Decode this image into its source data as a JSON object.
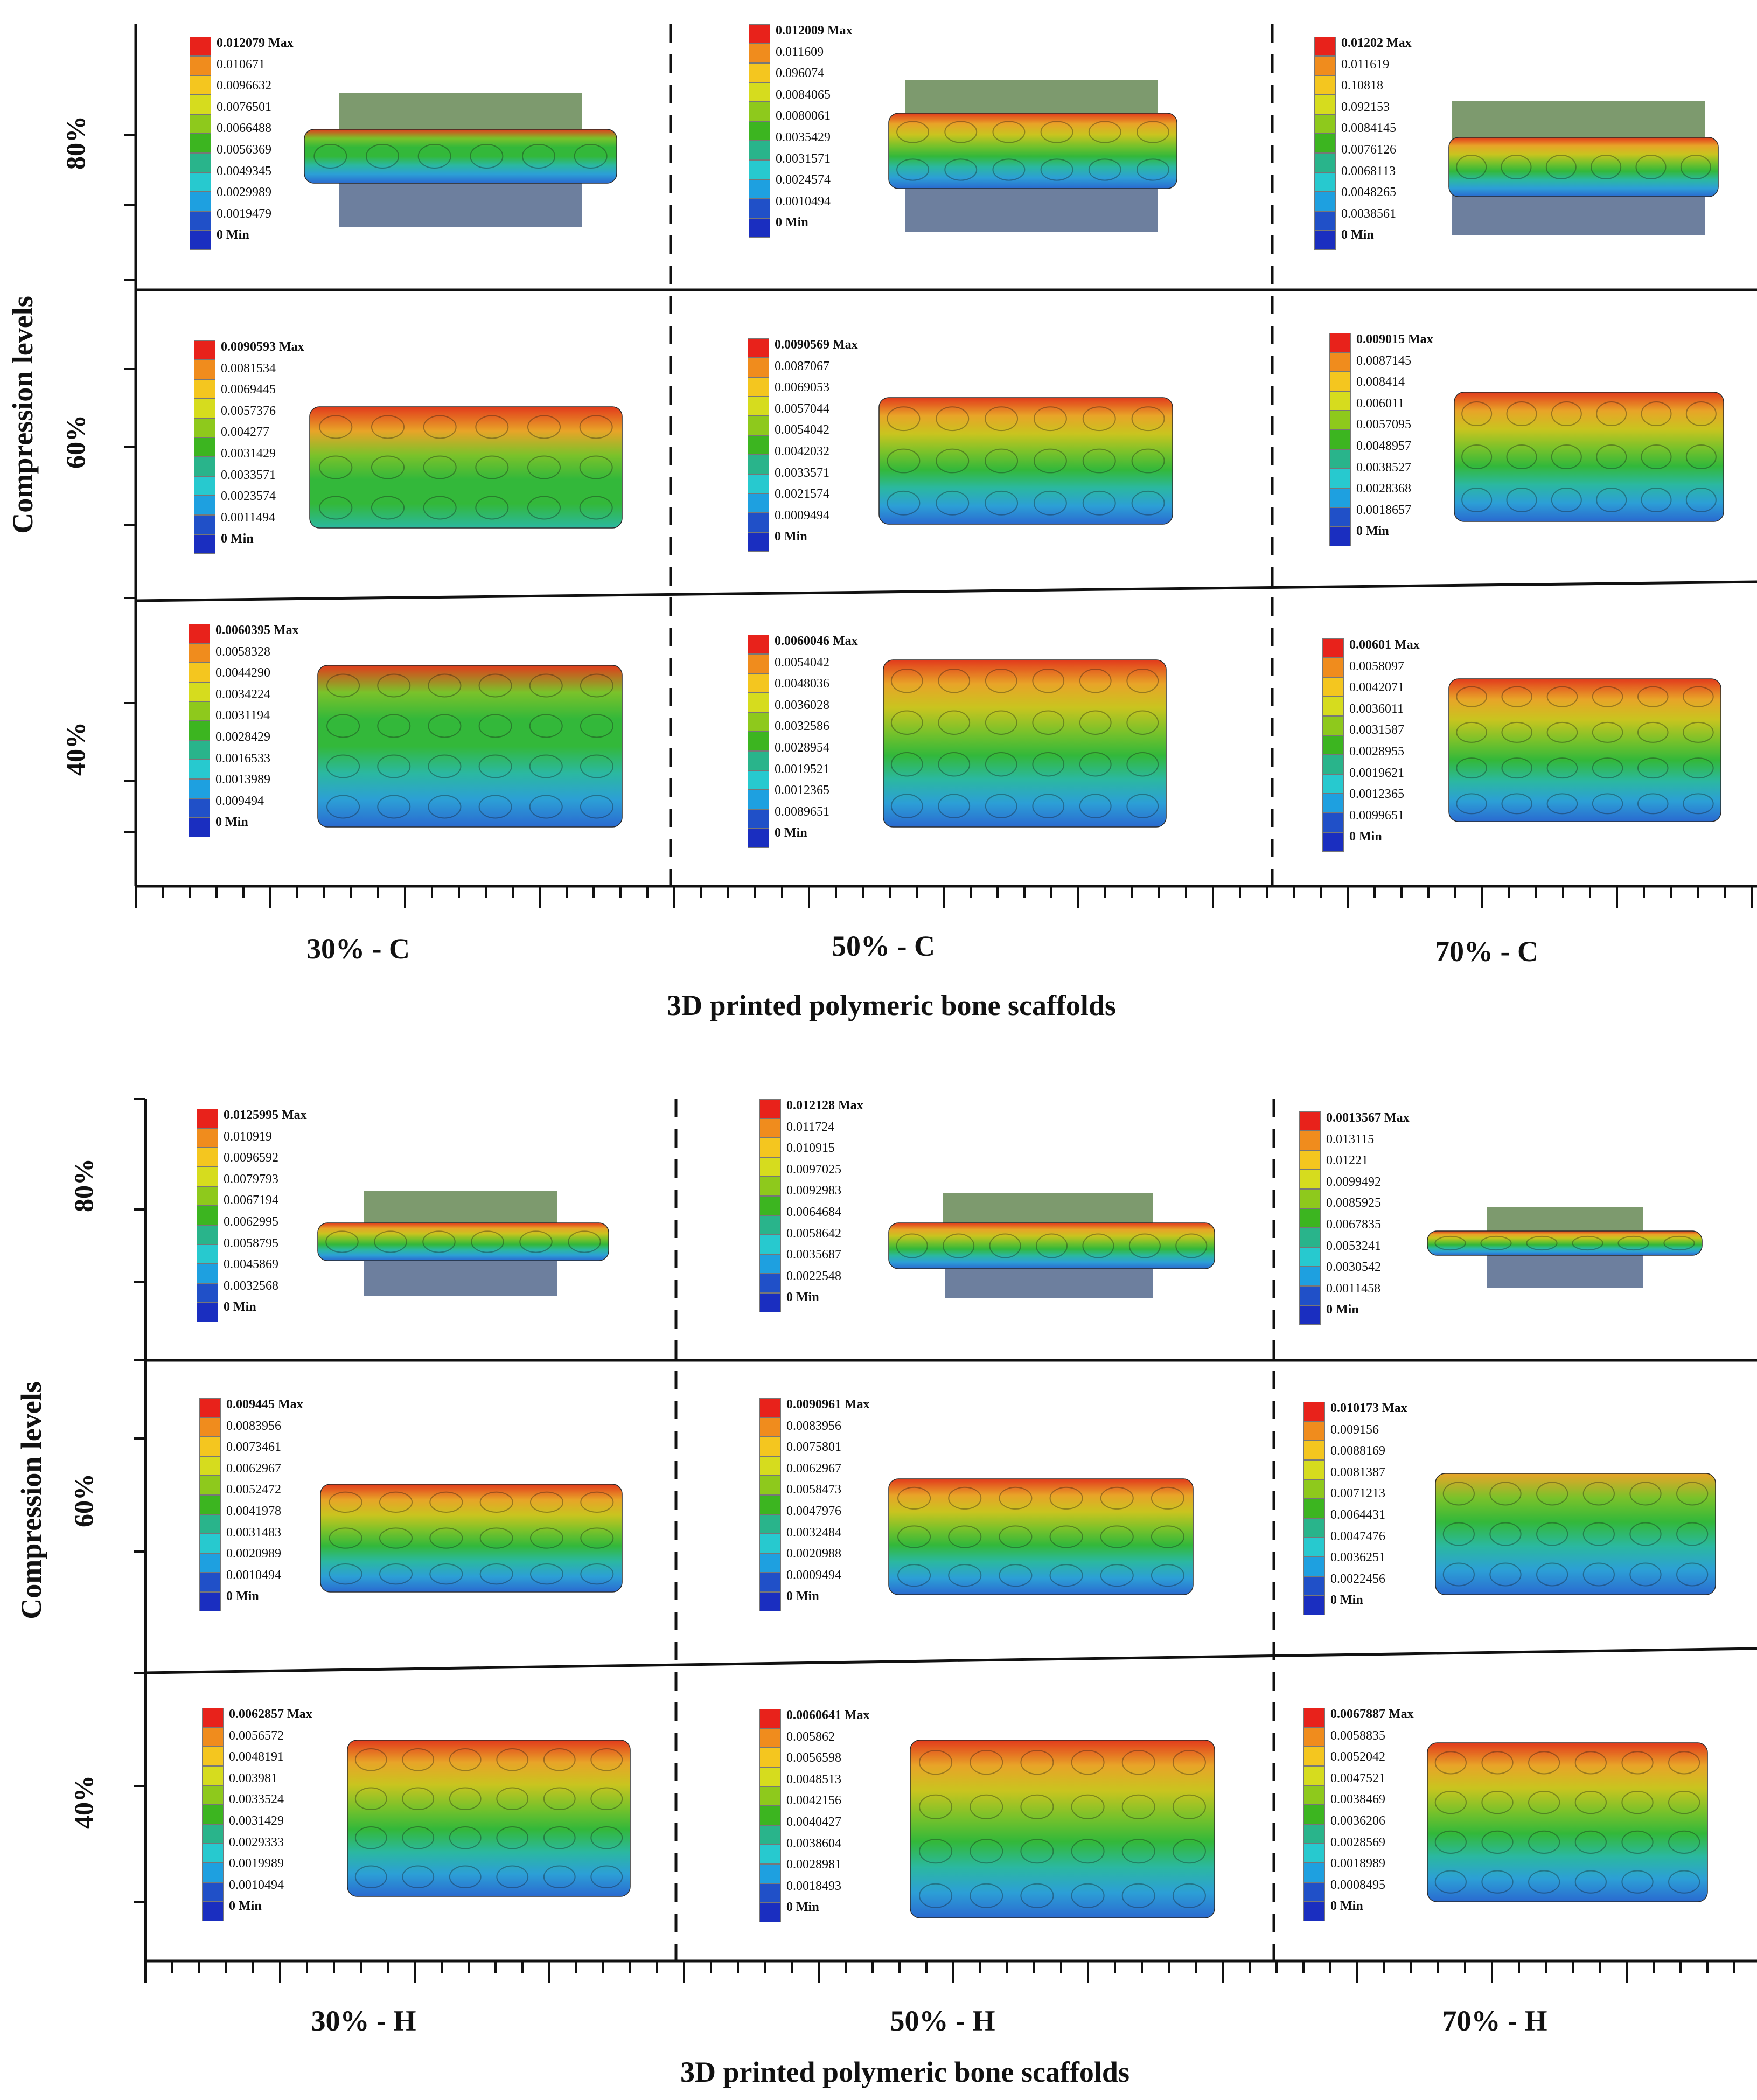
{
  "top_panel": {
    "y_axis_title": "Compression levels",
    "x_axis_title": "3D printed polymeric bone scaffolds",
    "row_labels": [
      "80%",
      "60%",
      "40%"
    ],
    "column_labels": [
      "30% - C",
      "50% - C",
      "70% - C"
    ]
  },
  "bottom_panel": {
    "y_axis_title": "Compression levels",
    "x_axis_title": "3D printed polymeric bone scaffolds",
    "row_labels": [
      "80%",
      "60%",
      "40%"
    ],
    "column_labels": [
      "30% - H",
      "50% - H",
      "70% - H"
    ]
  },
  "legend_colors": [
    "#e8221b",
    "#f08c1d",
    "#f4c61f",
    "#d6dc1e",
    "#8ec91c",
    "#3cb520",
    "#29b48b",
    "#27c9cf",
    "#1ea0e0",
    "#2050c8",
    "#1a2ec0"
  ],
  "geometry_colors": {
    "top_row": [
      "#e23b1c",
      "#e8a428",
      "#c9c41f",
      "#7bc22a",
      "#33b83a",
      "#2bb8a0",
      "#2c9fd6",
      "#2a6ad0"
    ],
    "plate_green": "#7d9a6e",
    "plate_blue": "#6d7f9e"
  },
  "legends": {
    "top": [
      [
        {
          "max": "0.012079 Max",
          "mids": [
            "0.010671",
            "0.0096632",
            "0.0076501",
            "0.0066488",
            "0.0056369",
            "0.0049345",
            "0.0029989",
            "0.0019479"
          ],
          "min": "0 Min"
        },
        {
          "max": "0.012009 Max",
          "mids": [
            "0.011609",
            "0.096074",
            "0.0084065",
            "0.0080061",
            "0.0035429",
            "0.0031571",
            "0.0024574",
            "0.0010494"
          ],
          "min": "0 Min"
        },
        {
          "max": "0.01202 Max",
          "mids": [
            "0.011619",
            "0.10818",
            "0.092153",
            "0.0084145",
            "0.0076126",
            "0.0068113",
            "0.0048265",
            "0.0038561"
          ],
          "min": "0 Min"
        }
      ],
      [
        {
          "max": "0.0090593 Max",
          "mids": [
            "0.0081534",
            "0.0069445",
            "0.0057376",
            "0.004277",
            "0.0031429",
            "0.0033571",
            "0.0023574",
            "0.0011494"
          ],
          "min": "0 Min"
        },
        {
          "max": "0.0090569 Max",
          "mids": [
            "0.0087067",
            "0.0069053",
            "0.0057044",
            "0.0054042",
            "0.0042032",
            "0.0033571",
            "0.0021574",
            "0.0009494"
          ],
          "min": "0 Min"
        },
        {
          "max": "0.009015 Max",
          "mids": [
            "0.0087145",
            "0.008414",
            "0.006011",
            "0.0057095",
            "0.0048957",
            "0.0038527",
            "0.0028368",
            "0.0018657"
          ],
          "min": "0 Min"
        }
      ],
      [
        {
          "max": "0.0060395 Max",
          "mids": [
            "0.0058328",
            "0.0044290",
            "0.0034224",
            "0.0031194",
            "0.0028429",
            "0.0016533",
            "0.0013989",
            "0.009494"
          ],
          "min": "0 Min"
        },
        {
          "max": "0.0060046 Max",
          "mids": [
            "0.0054042",
            "0.0048036",
            "0.0036028",
            "0.0032586",
            "0.0028954",
            "0.0019521",
            "0.0012365",
            "0.0089651"
          ],
          "min": "0 Min"
        },
        {
          "max": "0.00601 Max",
          "mids": [
            "0.0058097",
            "0.0042071",
            "0.0036011",
            "0.0031587",
            "0.0028955",
            "0.0019621",
            "0.0012365",
            "0.0099651"
          ],
          "min": "0 Min"
        }
      ]
    ],
    "bottom": [
      [
        {
          "max": "0.0125995 Max",
          "mids": [
            "0.010919",
            "0.0096592",
            "0.0079793",
            "0.0067194",
            "0.0062995",
            "0.0058795",
            "0.0045869",
            "0.0032568"
          ],
          "min": "0 Min"
        },
        {
          "max": "0.012128 Max",
          "mids": [
            "0.011724",
            "0.010915",
            "0.0097025",
            "0.0092983",
            "0.0064684",
            "0.0058642",
            "0.0035687",
            "0.0022548"
          ],
          "min": "0 Min"
        },
        {
          "max": "0.0013567 Max",
          "mids": [
            "0.013115",
            "0.01221",
            "0.0099492",
            "0.0085925",
            "0.0067835",
            "0.0053241",
            "0.0030542",
            "0.0011458"
          ],
          "min": "0 Min"
        }
      ],
      [
        {
          "max": "0.009445 Max",
          "mids": [
            "0.0083956",
            "0.0073461",
            "0.0062967",
            "0.0052472",
            "0.0041978",
            "0.0031483",
            "0.0020989",
            "0.0010494"
          ],
          "min": "0 Min"
        },
        {
          "max": "0.0090961 Max",
          "mids": [
            "0.0083956",
            "0.0075801",
            "0.0062967",
            "0.0058473",
            "0.0047976",
            "0.0032484",
            "0.0020988",
            "0.0009494"
          ],
          "min": "0 Min"
        },
        {
          "max": "0.010173 Max",
          "mids": [
            "0.009156",
            "0.0088169",
            "0.0081387",
            "0.0071213",
            "0.0064431",
            "0.0047476",
            "0.0036251",
            "0.0022456"
          ],
          "min": "0 Min"
        }
      ],
      [
        {
          "max": "0.0062857 Max",
          "mids": [
            "0.0056572",
            "0.0048191",
            "0.003981",
            "0.0033524",
            "0.0031429",
            "0.0029333",
            "0.0019989",
            "0.0010494"
          ],
          "min": "0 Min"
        },
        {
          "max": "0.0060641 Max",
          "mids": [
            "0.005862",
            "0.0056598",
            "0.0048513",
            "0.0042156",
            "0.0040427",
            "0.0038604",
            "0.0028981",
            "0.0018493"
          ],
          "min": "0 Min"
        },
        {
          "max": "0.0067887 Max",
          "mids": [
            "0.0058835",
            "0.0052042",
            "0.0047521",
            "0.0038469",
            "0.0036206",
            "0.0028569",
            "0.0018989",
            "0.0008495"
          ],
          "min": "0 Min"
        }
      ]
    ]
  }
}
